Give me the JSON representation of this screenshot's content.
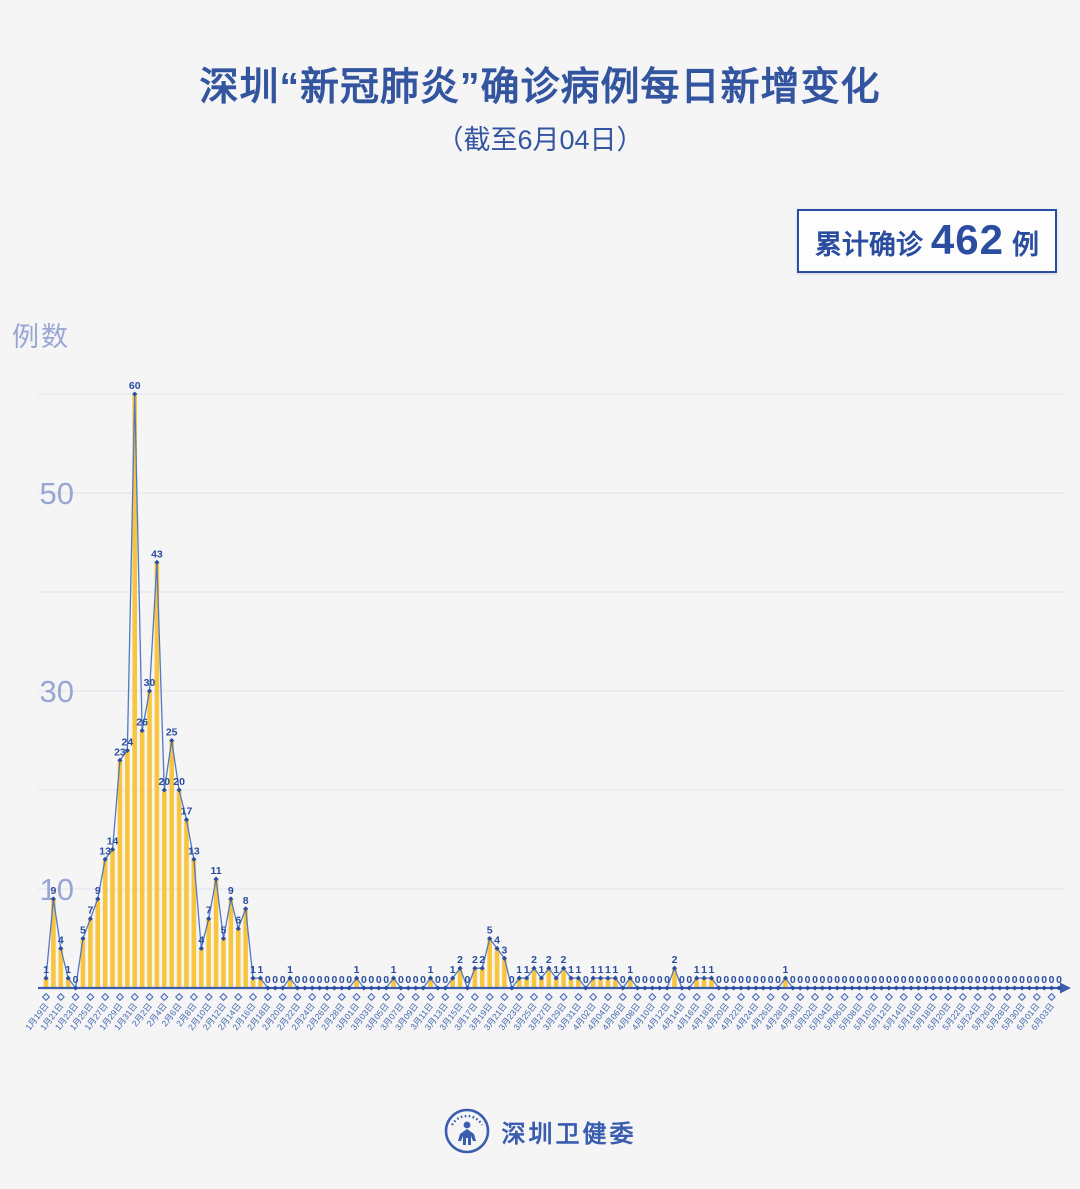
{
  "title": "深圳“新冠肺炎”确诊病例每日新增变化",
  "subtitle": "（截至6月04日）",
  "badge": {
    "prefix": "累计确诊",
    "value": "462",
    "suffix": "例"
  },
  "y_axis_title": "例数",
  "footer": {
    "org": "深圳卫健委"
  },
  "colors": {
    "title_blue": "#33549f",
    "dark_blue": "#2a4da0",
    "line_blue": "#5377c4",
    "axis_label_blue": "#99a6d4",
    "tick_label_blue": "#4268b3",
    "bar_yellow": "#f8c63e",
    "grid_gray": "#e4e6ee",
    "background": "#f5f5f6",
    "axis_blue": "#3a5dae"
  },
  "chart_data": {
    "type": "line-with-bars",
    "title": "深圳新冠肺炎确诊病例每日新增变化",
    "ylabel": "例数",
    "ylim": [
      0,
      62
    ],
    "grid": "horizontal",
    "gridline_values": [
      10,
      20,
      30,
      40,
      50,
      60
    ],
    "y_axis_labels": [
      50,
      30,
      10
    ],
    "x_start_date": "1月19日",
    "x_end_date": "6月04日",
    "values": [
      1,
      9,
      4,
      1,
      0,
      5,
      7,
      9,
      13,
      14,
      23,
      24,
      60,
      26,
      30,
      43,
      20,
      25,
      20,
      17,
      13,
      4,
      7,
      11,
      5,
      9,
      6,
      8,
      1,
      1,
      0,
      0,
      0,
      1,
      0,
      0,
      0,
      0,
      0,
      0,
      0,
      0,
      1,
      0,
      0,
      0,
      0,
      1,
      0,
      0,
      0,
      0,
      1,
      0,
      0,
      1,
      2,
      0,
      2,
      2,
      5,
      4,
      3,
      0,
      1,
      1,
      2,
      1,
      2,
      1,
      2,
      1,
      1,
      0,
      1,
      1,
      1,
      1,
      0,
      1,
      0,
      0,
      0,
      0,
      0,
      2,
      0,
      0,
      1,
      1,
      1,
      0,
      0,
      0,
      0,
      0,
      0,
      0,
      0,
      0,
      1,
      0,
      0,
      0,
      0,
      0,
      0,
      0,
      0,
      0,
      0,
      0,
      0,
      0,
      0,
      0,
      0,
      0,
      0,
      0,
      0,
      0,
      0,
      0,
      0,
      0,
      0,
      0,
      0,
      0,
      0,
      0,
      0,
      0,
      0,
      0,
      0,
      0
    ],
    "tick_every": 2,
    "tick_labels": [
      "1月19日",
      "1月21日",
      "1月23日",
      "1月25日",
      "1月27日",
      "1月29日",
      "1月31日",
      "2月2日",
      "2月4日",
      "2月6日",
      "2月8日",
      "2月10日",
      "2月12日",
      "2月14日",
      "2月16日",
      "2月18日",
      "2月20日",
      "2月22日",
      "2月24日",
      "2月26日",
      "2月28日",
      "3月01日",
      "3月03日",
      "3月05日",
      "3月07日",
      "3月09日",
      "3月11日",
      "3月13日",
      "3月15日",
      "3月17日",
      "3月19日",
      "3月21日",
      "3月23日",
      "3月25日",
      "3月27日",
      "3月29日",
      "3月31日",
      "4月02日",
      "4月04日",
      "4月06日",
      "4月08日",
      "4月10日",
      "4月12日",
      "4月14日",
      "4月16日",
      "4月18日",
      "4月20日",
      "4月22日",
      "4月24日",
      "4月26日",
      "4月28日",
      "4月30日",
      "5月02日",
      "5月04日",
      "5月06日",
      "5月08日",
      "5月10日",
      "5月12日",
      "5月14日",
      "5月16日",
      "5月18日",
      "5月20日",
      "5月22日",
      "5月24日",
      "5月26日",
      "5月28日",
      "5月30日",
      "6月01日",
      "6月03日"
    ]
  }
}
